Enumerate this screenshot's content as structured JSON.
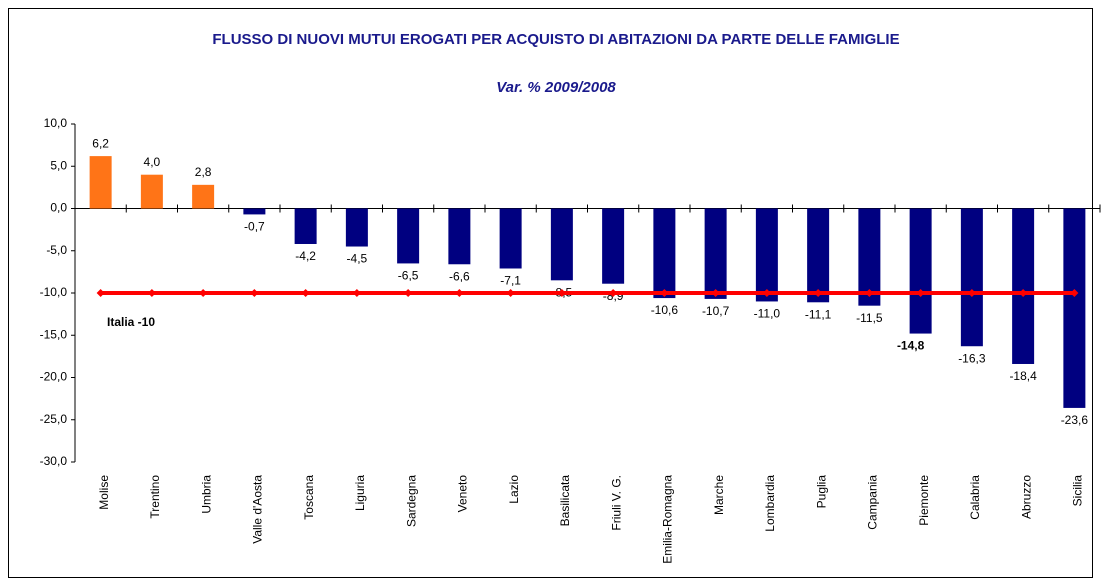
{
  "chart_data": {
    "type": "bar",
    "title": "FLUSSO DI NUOVI MUTUI EROGATI PER ACQUISTO DI ABITAZIONI DA PARTE DELLE FAMIGLIE",
    "subtitle": "Var. % 2009/2008",
    "categories": [
      "Molise",
      "Trentino",
      "Umbria",
      "Valle d'Aosta",
      "Toscana",
      "Liguria",
      "Sardegna",
      "Veneto",
      "Lazio",
      "Basilicata",
      "Friuli V. G.",
      "Emilia-Romagna",
      "Marche",
      "Lombardia",
      "Puglia",
      "Campania",
      "Piemonte",
      "Calabria",
      "Abruzzo",
      "Sicilia"
    ],
    "values": [
      6.2,
      4.0,
      2.8,
      -0.7,
      -4.2,
      -4.5,
      -6.5,
      -6.6,
      -7.1,
      -8.5,
      -8.9,
      -10.6,
      -10.7,
      -11.0,
      -11.1,
      -11.5,
      -14.8,
      -16.3,
      -18.4,
      -23.6
    ],
    "value_labels": [
      "6,2",
      "4,0",
      "2,8",
      "-0,7",
      "-4,2",
      "-4,5",
      "-6,5",
      "-6,6",
      "-7,1",
      "-8,5",
      "-8,9",
      "-10,6",
      "-10,7",
      "-11,0",
      "-11,1",
      "-11,5",
      "-14,8",
      "-16,3",
      "-18,4",
      "-23,6"
    ],
    "positive_color": "#ff7417",
    "negative_color": "#000080",
    "bold_label_index": 16,
    "line_series": {
      "name": "Italia -10",
      "color": "#ff0000",
      "values": [
        -10,
        -10,
        -10,
        -10,
        -10,
        -10,
        -10,
        -10,
        -10,
        -10,
        -10,
        -10,
        -10,
        -10,
        -10,
        -10,
        -10,
        -10,
        -10,
        -10
      ]
    },
    "ylim": [
      -30,
      10
    ],
    "yticks": [
      {
        "value": -30,
        "label": "-30,0"
      },
      {
        "value": -25,
        "label": "-25,0"
      },
      {
        "value": -20,
        "label": "-20,0"
      },
      {
        "value": -15,
        "label": "-15,0"
      },
      {
        "value": -10,
        "label": "-10,0"
      },
      {
        "value": -5,
        "label": "-5,0"
      },
      {
        "value": 0,
        "label": "0,0"
      },
      {
        "value": 5,
        "label": "5,0"
      },
      {
        "value": 10,
        "label": "10,0"
      }
    ]
  }
}
